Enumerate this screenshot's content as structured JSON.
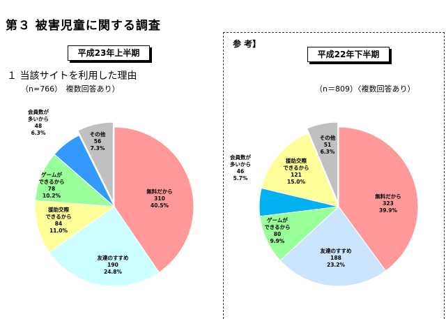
{
  "page": {
    "title": "第３ 被害児童に関する調査",
    "section_heading": "１ 当該サイトを利用した理由",
    "reference_label": "参 考】"
  },
  "left_panel": {
    "period": "平成23年上半期",
    "note": "（n=766）　複数回答あり）"
  },
  "right_panel": {
    "period": "平成22年下半期",
    "note": "（n＝809）〈複数回答あり）"
  },
  "chart_data": [
    {
      "type": "pie",
      "title": "平成23年上半期",
      "slices": [
        {
          "label": "無料だから",
          "value": 310,
          "percent": "40.5%",
          "color": "#ff9999"
        },
        {
          "label": "友達のすすめ",
          "value": 190,
          "percent": "24.8%",
          "color": "#ccffff"
        },
        {
          "label": "援助交際できるから",
          "value": 84,
          "percent": "11.0%",
          "color": "#ffff99"
        },
        {
          "label": "ゲームができるから",
          "value": 78,
          "percent": "10.2%",
          "color": "#99ff99"
        },
        {
          "label": "会員数が多いから",
          "value": 48,
          "percent": "6.3%",
          "color": "#3399ff"
        },
        {
          "label": "その他",
          "value": 56,
          "percent": "7.3%",
          "color": "#c0c0c0"
        }
      ],
      "slice_labels": [
        {
          "lines": [
            "無料だから",
            "310",
            "40.5%"
          ]
        },
        {
          "lines": [
            "友達のすすめ",
            "190",
            "24.8%"
          ]
        },
        {
          "lines": [
            "援助交際",
            "できるから",
            "84",
            "11.0%"
          ]
        },
        {
          "lines": [
            "ゲームが",
            "できるから",
            "78",
            "10.2%"
          ]
        },
        {
          "lines": [
            "会員数が",
            "多いから",
            "48",
            "6.3%"
          ]
        },
        {
          "lines": [
            "その他",
            "56",
            "7.3%"
          ]
        }
      ]
    },
    {
      "type": "pie",
      "title": "平成22年下半期",
      "slices": [
        {
          "label": "無料だから",
          "value": 323,
          "percent": "39.9%",
          "color": "#ff9999"
        },
        {
          "label": "友達のすすめ",
          "value": 188,
          "percent": "23.2%",
          "color": "#cce5ff"
        },
        {
          "label": "ゲームができるから",
          "value": 80,
          "percent": "9.9%",
          "color": "#99ff99"
        },
        {
          "label": "会員数が多いから",
          "value": 46,
          "percent": "5.7%",
          "color": "#00b0f0"
        },
        {
          "label": "援助交際できるから",
          "value": 121,
          "percent": "15.0%",
          "color": "#ffff99"
        },
        {
          "label": "その他",
          "value": 51,
          "percent": "6.3%",
          "color": "#c0c0c0"
        }
      ],
      "slice_labels": [
        {
          "lines": [
            "無料だから",
            "323",
            "39.9%"
          ]
        },
        {
          "lines": [
            "友達のすすめ",
            "188",
            "23.2%"
          ]
        },
        {
          "lines": [
            "ゲームが",
            "できるから",
            "80",
            "9.9%"
          ]
        },
        {
          "lines": [
            "会員数が",
            "多いから",
            "46",
            "5.7%"
          ]
        },
        {
          "lines": [
            "援助交際",
            "できるから",
            "121",
            "15.0%"
          ]
        },
        {
          "lines": [
            "その他",
            "51",
            "6.3%"
          ]
        }
      ]
    }
  ]
}
